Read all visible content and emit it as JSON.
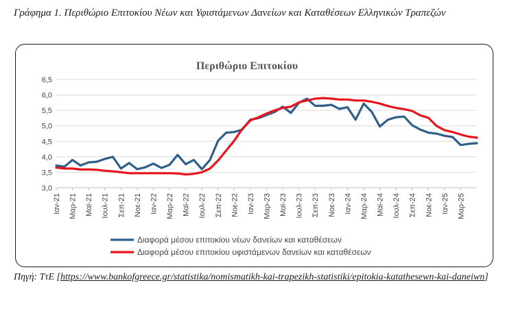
{
  "figure": {
    "caption": "Γράφημα 1. Περιθώριο Επιτοκίου Νέων και Υφιστάμενων Δανείων και Καταθέσεων Ελληνικών Τραπεζών",
    "source_prefix": "Πηγή: ΤτΕ [",
    "source_link": "https://www.bankofgreece.gr/statistika/nomismatikh-kai-trapezikh-statistiki/epitokia-katathesewn-kai-daneiwn",
    "source_suffix": "]"
  },
  "chart_data": {
    "type": "line",
    "title": "Περιθώριο Επιτοκίου",
    "xlabel": "",
    "ylabel": "",
    "ylim": [
      3.0,
      6.5
    ],
    "yticks": [
      "3,0",
      "3,5",
      "4,0",
      "4,5",
      "5,0",
      "5,5",
      "6,0",
      "6,5"
    ],
    "grid": true,
    "legend_position": "bottom",
    "x": [
      "Ιαν-21",
      "Φεβ-21",
      "Μαρ-21",
      "Απρ-21",
      "Μαϊ-21",
      "Ιουν-21",
      "Ιουλ-21",
      "Αυγ-21",
      "Σεπ-21",
      "Οκτ-21",
      "Νοε-21",
      "Δεκ-21",
      "Ιαν-22",
      "Φεβ-22",
      "Μαρ-22",
      "Απρ-22",
      "Μαϊ-22",
      "Ιουν-22",
      "Ιουλ-22",
      "Αυγ-22",
      "Σεπ-22",
      "Οκτ-22",
      "Νοε-22",
      "Δεκ-22",
      "Ιαν-23",
      "Φεβ-23",
      "Μαρ-23",
      "Απρ-23",
      "Μαϊ-23",
      "Ιουν-23",
      "Ιουλ-23",
      "Αυγ-23",
      "Σεπ-23",
      "Οκτ-23",
      "Νοε-23",
      "Δεκ-23",
      "Ιαν-24",
      "Φεβ-24",
      "Μαρ-24",
      "Απρ-24",
      "Μαϊ-24",
      "Ιουν-24",
      "Ιουλ-24",
      "Αυγ-24",
      "Σεπ-24",
      "Οκτ-24",
      "Νοε-24",
      "Δεκ-24",
      "Ιαν-25",
      "Φεβ-25",
      "Μαρ-25",
      "Απρ-25",
      "Μαϊ-25"
    ],
    "xtick_labels": [
      "Ιαν-21",
      "Μαρ-21",
      "Μαϊ-21",
      "Ιουλ-21",
      "Σεπ-21",
      "Νοε-21",
      "Ιαν-22",
      "Μαρ-22",
      "Μαϊ-22",
      "Ιουλ-22",
      "Σεπ-22",
      "Νοε-22",
      "Ιαν-23",
      "Μαρ-23",
      "Μαϊ-23",
      "Ιουλ-23",
      "Σεπ-23",
      "Νοε-23",
      "Ιαν-24",
      "Μαρ-24",
      "Μαϊ-24",
      "Ιουλ-24",
      "Σεπ-24",
      "Νοε-24",
      "Ιαν-25",
      "Μαρ-25"
    ],
    "series": [
      {
        "name": "Διαφορά μέσου επιτοκίου νέων δανείων και καταθέσεων",
        "color": "#2e5f8a",
        "values": [
          3.72,
          3.68,
          3.9,
          3.72,
          3.82,
          3.84,
          3.93,
          4.0,
          3.62,
          3.8,
          3.6,
          3.66,
          3.78,
          3.64,
          3.74,
          4.06,
          3.76,
          3.9,
          3.6,
          3.9,
          4.52,
          4.78,
          4.8,
          4.88,
          5.2,
          5.25,
          5.35,
          5.45,
          5.62,
          5.42,
          5.75,
          5.88,
          5.65,
          5.65,
          5.68,
          5.55,
          5.6,
          5.2,
          5.72,
          5.45,
          4.98,
          5.2,
          5.28,
          5.3,
          5.02,
          4.88,
          4.78,
          4.75,
          4.68,
          4.64,
          4.38,
          4.42,
          4.44
        ]
      },
      {
        "name": "Διαφορά μέσου επιτοκίου υφιστάμενων δανείων και καταθέσεων",
        "color": "#e8141c",
        "values": [
          3.65,
          3.62,
          3.62,
          3.59,
          3.59,
          3.58,
          3.55,
          3.53,
          3.5,
          3.47,
          3.47,
          3.47,
          3.47,
          3.47,
          3.47,
          3.46,
          3.43,
          3.45,
          3.5,
          3.62,
          3.88,
          4.2,
          4.52,
          4.9,
          5.18,
          5.28,
          5.4,
          5.5,
          5.58,
          5.62,
          5.76,
          5.82,
          5.88,
          5.9,
          5.88,
          5.85,
          5.85,
          5.82,
          5.82,
          5.78,
          5.72,
          5.64,
          5.58,
          5.54,
          5.48,
          5.34,
          5.26,
          5.0,
          4.86,
          4.8,
          4.72,
          4.65,
          4.62
        ]
      }
    ]
  }
}
